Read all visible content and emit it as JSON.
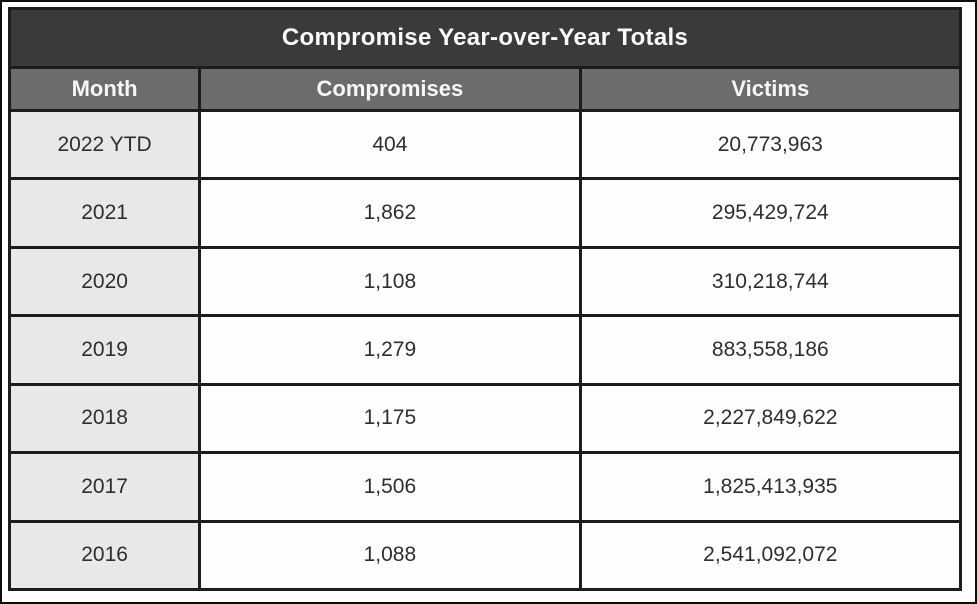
{
  "title": "Compromise Year-over-Year Totals",
  "table": {
    "headers": [
      "Month",
      "Compromises",
      "Victims"
    ],
    "rows": [
      {
        "month": "2022 YTD",
        "compromises": "404",
        "victims": "20,773,963"
      },
      {
        "month": "2021",
        "compromises": "1,862",
        "victims": "295,429,724"
      },
      {
        "month": "2020",
        "compromises": "1,108",
        "victims": "310,218,744"
      },
      {
        "month": "2019",
        "compromises": "1,279",
        "victims": "883,558,186"
      },
      {
        "month": "2018",
        "compromises": "1,175",
        "victims": "2,227,849,622"
      },
      {
        "month": "2017",
        "compromises": "1,506",
        "victims": "1,825,413,935"
      },
      {
        "month": "2016",
        "compromises": "1,088",
        "victims": "2,541,092,072"
      }
    ]
  },
  "colors": {
    "title_bar_bg": "#3a3a3a",
    "header_row_bg": "#6e6b6b",
    "month_column_bg": "#e9e8e6",
    "data_cell_bg": "#fefefe",
    "grid_border": "#1c1c1c",
    "outer_frame": "#0d0d0d",
    "title_text": "#fbfbfb",
    "data_text": "#2e2e2e"
  },
  "chart_data": {
    "type": "table",
    "title": "Compromise Year-over-Year Totals",
    "columns": [
      "Month",
      "Compromises",
      "Victims"
    ],
    "rows": [
      [
        "2022 YTD",
        404,
        20773963
      ],
      [
        "2021",
        1862,
        295429724
      ],
      [
        "2020",
        1108,
        310218744
      ],
      [
        "2019",
        1279,
        883558186
      ],
      [
        "2018",
        1175,
        2227849622
      ],
      [
        "2017",
        1506,
        1825413935
      ],
      [
        "2016",
        1088,
        2541092072
      ]
    ]
  }
}
